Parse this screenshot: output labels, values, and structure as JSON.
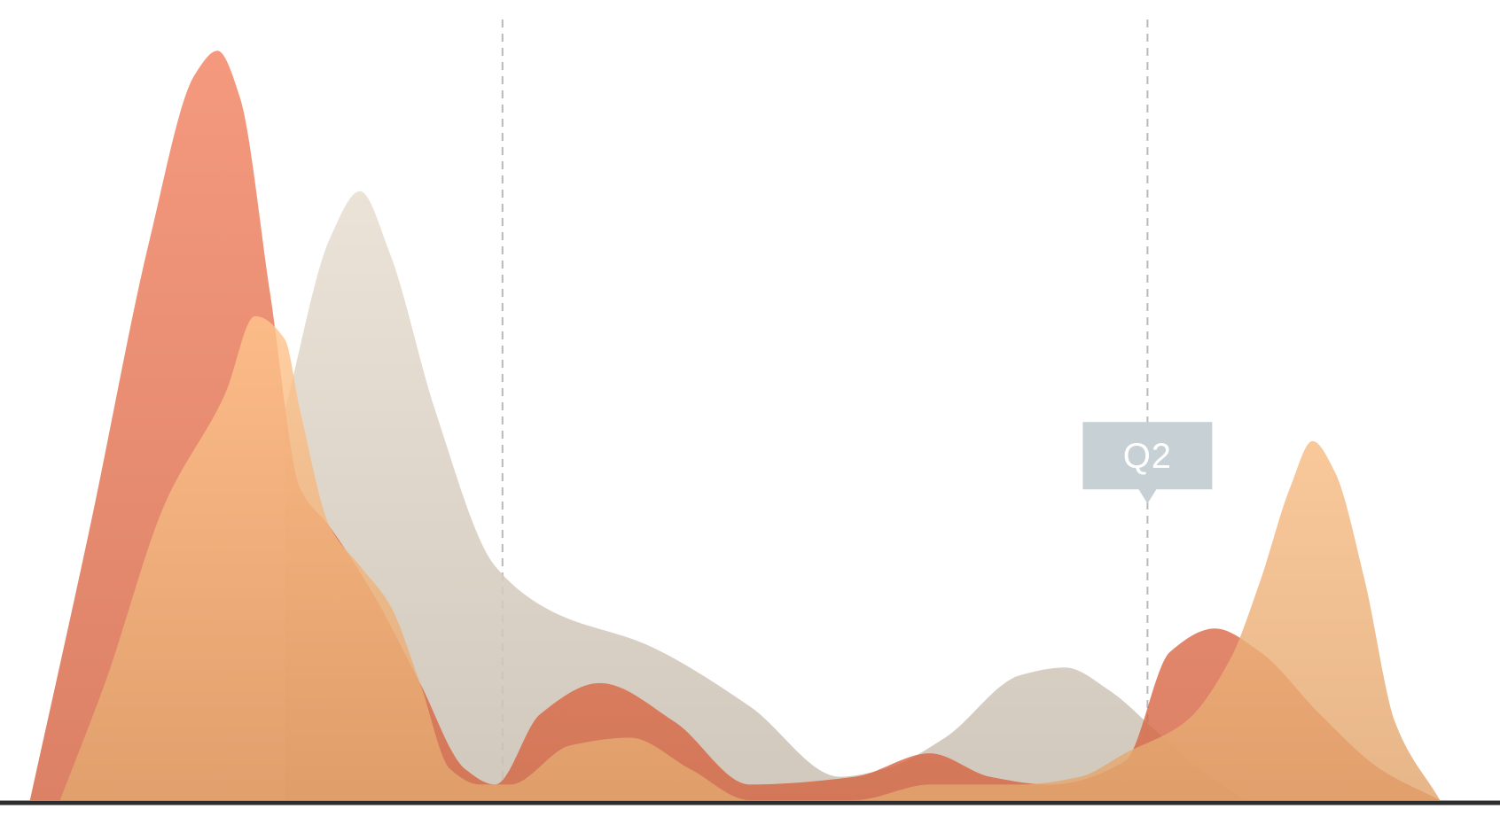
{
  "chart_data": {
    "type": "area",
    "title": "",
    "xlabel": "",
    "ylabel": "",
    "xlim": [
      0,
      100
    ],
    "ylim": [
      0,
      100
    ],
    "grid": false,
    "legend": "none",
    "series": [
      {
        "color": "#d7cdc0",
        "x": [
          19,
          22,
          24,
          26,
          29,
          33,
          37,
          43,
          50,
          56,
          59,
          63,
          68,
          71,
          74,
          77,
          80,
          83
        ],
        "y": [
          50,
          72,
          78,
          70,
          50,
          30,
          24,
          20,
          12,
          3,
          4,
          8,
          16,
          17,
          14,
          9,
          4,
          0
        ]
      },
      {
        "color": "#e0714f",
        "x": [
          2,
          6,
          10,
          13,
          14.5,
          16,
          18,
          20,
          22,
          25,
          28,
          31,
          33,
          36,
          40,
          45,
          50,
          57,
          62,
          66,
          70,
          75,
          78,
          81,
          84,
          88,
          92,
          96
        ],
        "y": [
          0,
          35,
          72,
          93,
          96,
          90,
          65,
          40,
          35,
          26,
          15,
          4,
          2,
          11,
          15,
          10,
          2,
          3,
          6,
          3,
          2,
          5,
          19,
          22,
          19,
          11,
          4,
          0
        ]
      },
      {
        "color": "#eeb27a",
        "x": [
          4,
          7,
          11,
          15,
          17,
          19,
          20,
          22,
          24,
          26,
          28,
          30,
          32,
          34,
          38,
          42,
          46,
          50,
          57,
          62,
          68,
          72,
          75,
          79,
          82,
          84,
          86,
          87.5,
          89,
          91,
          93,
          96
        ],
        "y": [
          0,
          15,
          38,
          52,
          62,
          59,
          50,
          35,
          30,
          25,
          15,
          4,
          2,
          2,
          7,
          8,
          4,
          0,
          0,
          2,
          2,
          3,
          6,
          10,
          18,
          28,
          40,
          46,
          42,
          28,
          10,
          0
        ]
      }
    ],
    "markers": [
      {
        "x": 33.5
      },
      {
        "x": 76.5,
        "label": "Q2",
        "y": 38
      }
    ],
    "colors": {
      "guide": "#b9b9b9",
      "baseline": "#2d2d2d",
      "tooltip_bg": "#c7d1d5",
      "tooltip_text": "#ffffff"
    }
  }
}
